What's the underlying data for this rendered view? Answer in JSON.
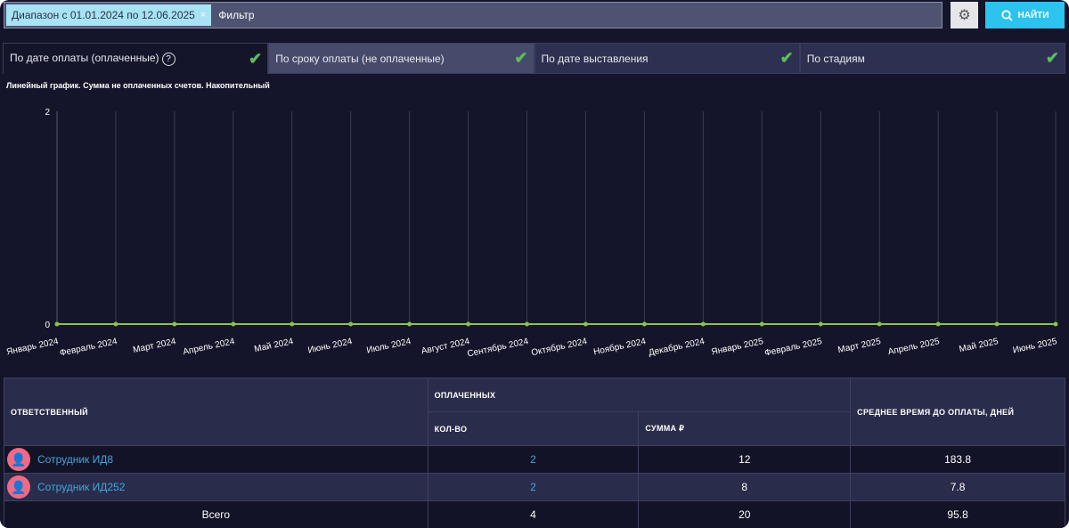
{
  "filter": {
    "tag": "Диапазон с 01.01.2024 по 12.06.2025",
    "tag_remove": "×",
    "placeholder": "Фильтр"
  },
  "find_label": "НАЙТИ",
  "tabs": [
    {
      "label": "По дате оплаты (оплаченные)",
      "help": "?"
    },
    {
      "label": "По сроку оплаты (не оплаченные)"
    },
    {
      "label": "По дате выставления"
    },
    {
      "label": "По стадиям"
    }
  ],
  "chart_title": "Линейный график. Сумма не оплаченных счетов. Накопительный",
  "chart_data": {
    "type": "line",
    "title": "Линейный график. Сумма не оплаченных счетов. Накопительный",
    "categories": [
      "Январь 2024",
      "Февраль 2024",
      "Март 2024",
      "Апрель 2024",
      "Май 2024",
      "Июнь 2024",
      "Июль 2024",
      "Август 2024",
      "Сентябрь 2024",
      "Октябрь 2024",
      "Ноябрь 2024",
      "Декабрь 2024",
      "Январь 2025",
      "Февраль 2025",
      "Март 2025",
      "Апрель 2025",
      "Май 2025",
      "Июнь 2025"
    ],
    "values": [
      0,
      0,
      0,
      0,
      0,
      0,
      0,
      0,
      0,
      0,
      0,
      0,
      0,
      0,
      0,
      0,
      0,
      0
    ],
    "yticks": [
      "0",
      "2"
    ],
    "ylim": [
      0,
      2
    ],
    "color": "#8bc34a"
  },
  "table": {
    "headers": {
      "responsible": "ОТВЕТСТВЕННЫЙ",
      "paid": "ОПЛАЧЕННЫХ",
      "count": "КОЛ-ВО",
      "sum": "СУММА ₽",
      "avg": "СРЕДНЕЕ ВРЕМЯ ДО ОПЛАТЫ, ДНЕЙ"
    },
    "rows": [
      {
        "name": "Сотрудник ИД8",
        "count": "2",
        "sum": "12",
        "avg": "183.8"
      },
      {
        "name": "Сотрудник ИД252",
        "count": "2",
        "sum": "8",
        "avg": "7.8"
      }
    ],
    "total": {
      "label": "Всего",
      "count": "4",
      "sum": "20",
      "avg": "95.8"
    }
  }
}
